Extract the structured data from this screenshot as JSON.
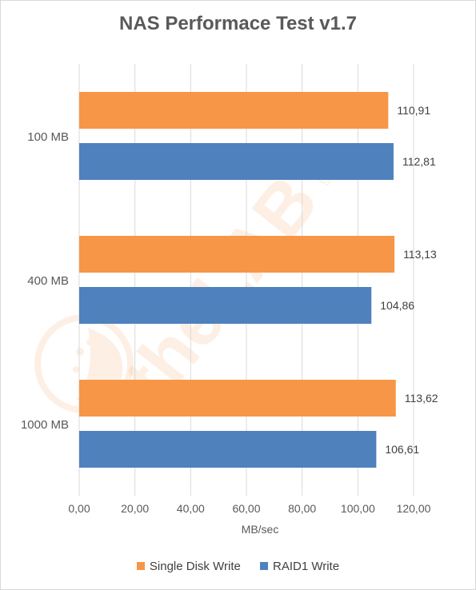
{
  "chart_data": {
    "type": "bar",
    "orientation": "horizontal",
    "title": "NAS Performace Test v1.7",
    "xlabel": "MB/sec",
    "ylabel": "",
    "categories": [
      "100 MB",
      "400 MB",
      "1000 MB"
    ],
    "series": [
      {
        "name": "Single Disk Write",
        "color": "#f79646",
        "values": [
          110.91,
          113.13,
          113.62
        ],
        "labels": [
          "110,91",
          "113,13",
          "113,62"
        ]
      },
      {
        "name": "RAID1 Write",
        "color": "#4f81bd",
        "values": [
          112.81,
          104.86,
          106.61
        ],
        "labels": [
          "112,81",
          "104,86",
          "106,61"
        ]
      }
    ],
    "xlim": [
      0,
      120
    ],
    "xticks": [
      "0,00",
      "20,00",
      "40,00",
      "60,00",
      "80,00",
      "100,00",
      "120,00"
    ],
    "grid": true,
    "legend": "bottom"
  },
  "watermark": {
    "text": "theLAB",
    "suffix": "gr"
  }
}
